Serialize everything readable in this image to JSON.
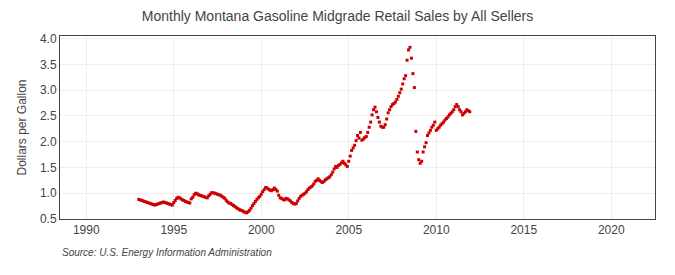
{
  "chart_data": {
    "type": "scatter",
    "title": "Monthly Montana Gasoline Midgrade Retail Sales by All Sellers",
    "ylabel": "Dollars per Gallon",
    "annotations": [
      "Source: U.S. Energy Information Administration"
    ],
    "xlim": [
      1988.5,
      2022.5
    ],
    "ylim": [
      0.5,
      4.05
    ],
    "xticks": [
      1990,
      1995,
      2000,
      2005,
      2010,
      2015,
      2020
    ],
    "yticks": [
      0.5,
      {
        "value": 1.0,
        "label": "1.0"
      },
      1.5,
      {
        "value": 2.0,
        "label": "2.0"
      },
      2.5,
      {
        "value": 3.0,
        "label": "3.0"
      },
      3.5,
      {
        "value": 4.0,
        "label": "4.0"
      }
    ],
    "grid": true,
    "color": "#cc0000",
    "marker": "square",
    "x": [
      1993.0,
      1993.083,
      1993.167,
      1993.25,
      1993.333,
      1993.417,
      1993.5,
      1993.583,
      1993.667,
      1993.75,
      1993.833,
      1993.917,
      1994.0,
      1994.083,
      1994.167,
      1994.25,
      1994.333,
      1994.417,
      1994.5,
      1994.583,
      1994.667,
      1994.75,
      1994.833,
      1994.917,
      1995.0,
      1995.083,
      1995.167,
      1995.25,
      1995.333,
      1995.417,
      1995.5,
      1995.583,
      1995.667,
      1995.75,
      1995.833,
      1995.917,
      1996.0,
      1996.083,
      1996.167,
      1996.25,
      1996.333,
      1996.417,
      1996.5,
      1996.583,
      1996.667,
      1996.75,
      1996.833,
      1996.917,
      1997.0,
      1997.083,
      1997.167,
      1997.25,
      1997.333,
      1997.417,
      1997.5,
      1997.583,
      1997.667,
      1997.75,
      1997.833,
      1997.917,
      1998.0,
      1998.083,
      1998.167,
      1998.25,
      1998.333,
      1998.417,
      1998.5,
      1998.583,
      1998.667,
      1998.75,
      1998.833,
      1998.917,
      1999.0,
      1999.083,
      1999.167,
      1999.25,
      1999.333,
      1999.417,
      1999.5,
      1999.583,
      1999.667,
      1999.75,
      1999.833,
      1999.917,
      2000.0,
      2000.083,
      2000.167,
      2000.25,
      2000.333,
      2000.417,
      2000.5,
      2000.583,
      2000.667,
      2000.75,
      2000.833,
      2000.917,
      2001.0,
      2001.083,
      2001.167,
      2001.25,
      2001.333,
      2001.417,
      2001.5,
      2001.583,
      2001.667,
      2001.75,
      2001.833,
      2001.917,
      2002.0,
      2002.083,
      2002.167,
      2002.25,
      2002.333,
      2002.417,
      2002.5,
      2002.583,
      2002.667,
      2002.75,
      2002.833,
      2002.917,
      2003.0,
      2003.083,
      2003.167,
      2003.25,
      2003.333,
      2003.417,
      2003.5,
      2003.583,
      2003.667,
      2003.75,
      2003.833,
      2003.917,
      2004.0,
      2004.083,
      2004.167,
      2004.25,
      2004.333,
      2004.417,
      2004.5,
      2004.583,
      2004.667,
      2004.75,
      2004.833,
      2004.917,
      2005.0,
      2005.083,
      2005.167,
      2005.25,
      2005.333,
      2005.417,
      2005.5,
      2005.583,
      2005.667,
      2005.75,
      2005.833,
      2005.917,
      2006.0,
      2006.083,
      2006.167,
      2006.25,
      2006.333,
      2006.417,
      2006.5,
      2006.583,
      2006.667,
      2006.75,
      2006.833,
      2006.917,
      2007.0,
      2007.083,
      2007.167,
      2007.25,
      2007.333,
      2007.417,
      2007.5,
      2007.583,
      2007.667,
      2007.75,
      2007.833,
      2007.917,
      2008.0,
      2008.083,
      2008.167,
      2008.25,
      2008.333,
      2008.417,
      2008.5,
      2008.583,
      2008.667,
      2008.75,
      2008.833,
      2008.917,
      2009.0,
      2009.083,
      2009.167,
      2009.25,
      2009.333,
      2009.417,
      2009.5,
      2009.583,
      2009.667,
      2009.75,
      2009.833,
      2009.917,
      2010.0,
      2010.083,
      2010.167,
      2010.25,
      2010.333,
      2010.417,
      2010.5,
      2010.583,
      2010.667,
      2010.75,
      2010.833,
      2010.917,
      2011.0,
      2011.083,
      2011.167,
      2011.25,
      2011.333,
      2011.417,
      2011.5,
      2011.583,
      2011.667,
      2011.75,
      2011.833,
      2011.917
    ],
    "values": [
      0.88,
      0.87,
      0.86,
      0.85,
      0.84,
      0.83,
      0.82,
      0.81,
      0.8,
      0.79,
      0.78,
      0.77,
      0.78,
      0.79,
      0.8,
      0.81,
      0.82,
      0.83,
      0.82,
      0.81,
      0.8,
      0.79,
      0.78,
      0.77,
      0.82,
      0.86,
      0.9,
      0.92,
      0.91,
      0.89,
      0.87,
      0.86,
      0.84,
      0.83,
      0.82,
      0.81,
      0.89,
      0.92,
      0.97,
      1.0,
      0.99,
      0.97,
      0.96,
      0.95,
      0.94,
      0.93,
      0.92,
      0.91,
      0.95,
      0.98,
      1.01,
      1.01,
      1.0,
      0.99,
      0.98,
      0.97,
      0.96,
      0.94,
      0.92,
      0.9,
      0.86,
      0.83,
      0.81,
      0.8,
      0.78,
      0.76,
      0.74,
      0.72,
      0.7,
      0.68,
      0.67,
      0.66,
      0.64,
      0.63,
      0.62,
      0.64,
      0.67,
      0.71,
      0.76,
      0.8,
      0.84,
      0.88,
      0.91,
      0.94,
      0.98,
      1.03,
      1.07,
      1.11,
      1.1,
      1.08,
      1.06,
      1.05,
      1.07,
      1.1,
      1.07,
      1.04,
      0.96,
      0.91,
      0.9,
      0.88,
      0.87,
      0.9,
      0.89,
      0.87,
      0.85,
      0.82,
      0.8,
      0.79,
      0.8,
      0.85,
      0.9,
      0.94,
      0.96,
      0.98,
      1.0,
      1.03,
      1.07,
      1.1,
      1.12,
      1.14,
      1.18,
      1.23,
      1.25,
      1.28,
      1.25,
      1.22,
      1.21,
      1.23,
      1.26,
      1.28,
      1.3,
      1.32,
      1.36,
      1.41,
      1.47,
      1.52,
      1.5,
      1.54,
      1.56,
      1.59,
      1.62,
      1.58,
      1.55,
      1.52,
      1.62,
      1.72,
      1.83,
      1.88,
      1.93,
      2.02,
      2.12,
      2.07,
      2.18,
      2.03,
      2.05,
      2.08,
      2.1,
      2.18,
      2.28,
      2.38,
      2.52,
      2.62,
      2.67,
      2.58,
      2.47,
      2.38,
      2.3,
      2.28,
      2.28,
      2.33,
      2.44,
      2.56,
      2.62,
      2.68,
      2.72,
      2.74,
      2.77,
      2.82,
      2.88,
      2.95,
      3.02,
      3.12,
      3.22,
      3.28,
      3.58,
      3.78,
      3.83,
      3.62,
      3.32,
      3.05,
      2.2,
      1.8,
      1.65,
      1.58,
      1.62,
      1.8,
      1.9,
      1.98,
      2.12,
      2.17,
      2.22,
      2.28,
      2.32,
      2.38,
      2.22,
      2.25,
      2.28,
      2.32,
      2.35,
      2.38,
      2.42,
      2.45,
      2.48,
      2.52,
      2.55,
      2.58,
      2.62,
      2.68,
      2.72,
      2.68,
      2.62,
      2.58,
      2.52,
      2.55,
      2.58,
      2.62,
      2.6,
      2.58
    ]
  }
}
